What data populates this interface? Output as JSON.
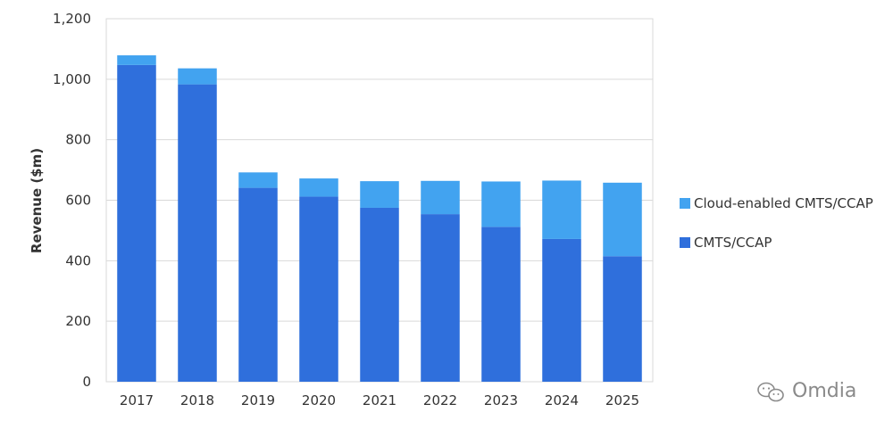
{
  "chart_data": {
    "type": "bar",
    "stacked": true,
    "categories": [
      "2017",
      "2018",
      "2019",
      "2020",
      "2021",
      "2022",
      "2023",
      "2024",
      "2025"
    ],
    "series": [
      {
        "name": "CMTS/CCAP",
        "color": "#2f6fdc",
        "values": [
          1047,
          983,
          641,
          612,
          575,
          554,
          512,
          472,
          415
        ]
      },
      {
        "name": "Cloud-enabled CMTS/CCAP",
        "color": "#42a3f0",
        "values": [
          32,
          53,
          51,
          60,
          88,
          110,
          150,
          193,
          243
        ]
      }
    ],
    "xlabel": "",
    "ylabel": "Revenue ($m)",
    "ylim": [
      0,
      1200
    ],
    "yticks": [
      0,
      200,
      400,
      600,
      800,
      1000,
      1200
    ],
    "ytick_labels": [
      "0",
      "200",
      "400",
      "600",
      "800",
      "1,000",
      "1,200"
    ],
    "grid": true,
    "legend_position": "right"
  },
  "watermark": {
    "text": "Omdia",
    "icon": "wechat-icon"
  }
}
